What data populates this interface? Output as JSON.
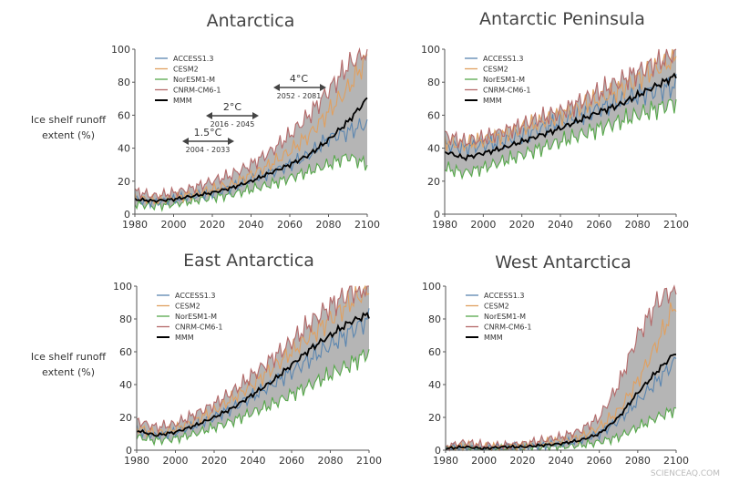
{
  "ylabel_lines": [
    "Ice shelf runoff",
    "extent (%)"
  ],
  "watermark": "SCIENCEAQ.COM",
  "colors": {
    "ACCESS1.3": "#5b86b0",
    "CESM2": "#e0a060",
    "NorESM1-M": "#56a84a",
    "CNRM-CM6-1": "#b46a6a",
    "MMM": "#000000",
    "envelope": "#a8a8a8"
  },
  "annotations": [
    {
      "label": "1.5°C",
      "range": "2004 - 2033",
      "x_start": 2004,
      "x_end": 2033
    },
    {
      "label": "2°C",
      "range": "2016 - 2045",
      "x_start": 2016,
      "x_end": 2045
    },
    {
      "label": "4°C",
      "range": "2052 - 2081",
      "x_start": 2052,
      "x_end": 2081
    }
  ],
  "chart_data": [
    {
      "type": "line",
      "title": "Antarctica",
      "xlim": [
        1980,
        2100
      ],
      "ylim": [
        0,
        100
      ],
      "xticks": [
        "1980",
        "2000",
        "2020",
        "2040",
        "2060",
        "2080",
        "2100"
      ],
      "yticks": [
        "0",
        "20",
        "40",
        "60",
        "80",
        "100"
      ],
      "legend": [
        "ACCESS1.3",
        "CESM2",
        "NorESM1-M",
        "CNRM-CM6-1",
        "MMM"
      ],
      "legend_position": "top-left",
      "x": [
        1980,
        1990,
        2000,
        2010,
        2020,
        2030,
        2040,
        2050,
        2060,
        2070,
        2080,
        2090,
        2100
      ],
      "series": [
        {
          "name": "ACCESS1.3",
          "values": [
            9,
            7,
            9,
            11,
            13,
            16,
            21,
            25,
            30,
            36,
            46,
            50,
            55
          ]
        },
        {
          "name": "CESM2",
          "values": [
            10,
            8,
            10,
            12,
            15,
            18,
            24,
            30,
            38,
            48,
            62,
            76,
            95
          ]
        },
        {
          "name": "NorESM1-M",
          "values": [
            6,
            5,
            6,
            8,
            10,
            12,
            15,
            18,
            22,
            26,
            30,
            35,
            30
          ]
        },
        {
          "name": "CNRM-CM6-1",
          "values": [
            14,
            11,
            13,
            16,
            20,
            24,
            30,
            38,
            48,
            60,
            75,
            90,
            100
          ]
        },
        {
          "name": "MMM",
          "values": [
            9,
            8,
            9,
            11,
            13,
            16,
            20,
            25,
            30,
            36,
            45,
            56,
            70
          ]
        }
      ]
    },
    {
      "type": "line",
      "title": "Antarctic Peninsula",
      "xlim": [
        1980,
        2100
      ],
      "ylim": [
        0,
        100
      ],
      "xticks": [
        "1980",
        "2000",
        "2020",
        "2040",
        "2060",
        "2080",
        "2100"
      ],
      "yticks": [
        "0",
        "20",
        "40",
        "60",
        "80",
        "100"
      ],
      "legend": [
        "ACCESS1.3",
        "CESM2",
        "NorESM1-M",
        "CNRM-CM6-1",
        "MMM"
      ],
      "legend_position": "top-left",
      "x": [
        1980,
        1990,
        2000,
        2010,
        2020,
        2030,
        2040,
        2050,
        2060,
        2070,
        2080,
        2090,
        2100
      ],
      "series": [
        {
          "name": "ACCESS1.3",
          "values": [
            42,
            40,
            42,
            44,
            48,
            52,
            56,
            60,
            64,
            68,
            72,
            75,
            78
          ]
        },
        {
          "name": "CESM2",
          "values": [
            44,
            42,
            45,
            48,
            52,
            56,
            60,
            65,
            70,
            75,
            82,
            88,
            95
          ]
        },
        {
          "name": "NorESM1-M",
          "values": [
            28,
            25,
            28,
            32,
            36,
            40,
            44,
            48,
            52,
            56,
            60,
            64,
            68
          ]
        },
        {
          "name": "CNRM-CM6-1",
          "values": [
            48,
            44,
            46,
            50,
            54,
            58,
            62,
            68,
            74,
            80,
            86,
            92,
            98
          ]
        },
        {
          "name": "MMM",
          "values": [
            38,
            34,
            37,
            40,
            44,
            48,
            52,
            57,
            62,
            66,
            72,
            78,
            84
          ]
        }
      ]
    },
    {
      "type": "line",
      "title": "East Antarctica",
      "xlim": [
        1980,
        2100
      ],
      "ylim": [
        0,
        100
      ],
      "xticks": [
        "1980",
        "2000",
        "2020",
        "2040",
        "2060",
        "2080",
        "2100"
      ],
      "yticks": [
        "0",
        "20",
        "40",
        "60",
        "80",
        "100"
      ],
      "legend": [
        "ACCESS1.3",
        "CESM2",
        "NorESM1-M",
        "CNRM-CM6-1",
        "MMM"
      ],
      "legend_position": "top-left",
      "x": [
        1980,
        1990,
        2000,
        2010,
        2020,
        2030,
        2040,
        2050,
        2060,
        2070,
        2080,
        2090,
        2100
      ],
      "series": [
        {
          "name": "ACCESS1.3",
          "values": [
            12,
            9,
            11,
            15,
            20,
            26,
            33,
            40,
            48,
            56,
            64,
            72,
            80
          ]
        },
        {
          "name": "CESM2",
          "values": [
            14,
            10,
            13,
            18,
            24,
            32,
            40,
            50,
            60,
            70,
            80,
            90,
            98
          ]
        },
        {
          "name": "NorESM1-M",
          "values": [
            8,
            6,
            7,
            10,
            14,
            18,
            23,
            28,
            34,
            40,
            46,
            52,
            60
          ]
        },
        {
          "name": "CNRM-CM6-1",
          "values": [
            18,
            14,
            16,
            22,
            28,
            36,
            46,
            56,
            66,
            78,
            88,
            96,
            100
          ]
        },
        {
          "name": "MMM",
          "values": [
            12,
            9,
            11,
            15,
            20,
            26,
            34,
            42,
            52,
            62,
            70,
            78,
            83
          ]
        }
      ]
    },
    {
      "type": "line",
      "title": "West Antarctica",
      "xlim": [
        1980,
        2100
      ],
      "ylim": [
        0,
        100
      ],
      "xticks": [
        "1980",
        "2000",
        "2020",
        "2040",
        "2060",
        "2080",
        "2100"
      ],
      "yticks": [
        "0",
        "20",
        "40",
        "60",
        "80",
        "100"
      ],
      "legend": [
        "ACCESS1.3",
        "CESM2",
        "NorESM1-M",
        "CNRM-CM6-1",
        "MMM"
      ],
      "legend_position": "top-left",
      "x": [
        1980,
        1990,
        2000,
        2010,
        2020,
        2030,
        2040,
        2050,
        2060,
        2070,
        2080,
        2090,
        2100
      ],
      "series": [
        {
          "name": "ACCESS1.3",
          "values": [
            1,
            2,
            1,
            2,
            2,
            3,
            4,
            6,
            10,
            18,
            30,
            42,
            55
          ]
        },
        {
          "name": "CESM2",
          "values": [
            1,
            3,
            2,
            2,
            3,
            4,
            6,
            8,
            14,
            24,
            42,
            65,
            90
          ]
        },
        {
          "name": "NorESM1-M",
          "values": [
            0,
            1,
            0,
            1,
            1,
            2,
            2,
            3,
            5,
            8,
            14,
            20,
            25
          ]
        },
        {
          "name": "CNRM-CM6-1",
          "values": [
            2,
            5,
            3,
            3,
            4,
            6,
            8,
            12,
            20,
            40,
            70,
            90,
            100
          ]
        },
        {
          "name": "MMM",
          "values": [
            1,
            2,
            1,
            2,
            2,
            3,
            4,
            6,
            10,
            20,
            35,
            48,
            60
          ]
        }
      ]
    }
  ]
}
